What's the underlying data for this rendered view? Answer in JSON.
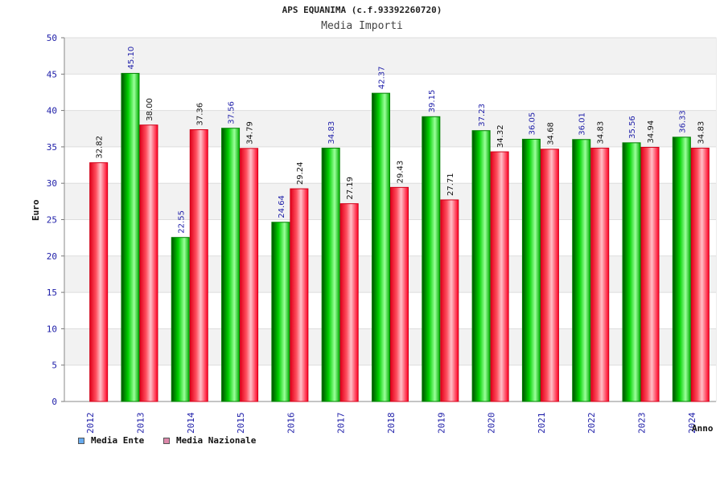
{
  "chart_data": {
    "type": "bar",
    "title": "APS EQUANIMA (c.f.93392260720)",
    "subtitle": "Media Importi",
    "xlabel": "Anno",
    "ylabel": "Euro",
    "categories": [
      "2012",
      "2013",
      "2014",
      "2015",
      "2016",
      "2017",
      "2018",
      "2019",
      "2020",
      "2021",
      "2022",
      "2023",
      "2024"
    ],
    "series": [
      {
        "name": "Media Ente",
        "color": "#00cc00",
        "values": [
          null,
          45.1,
          22.55,
          37.56,
          24.64,
          34.83,
          42.37,
          39.15,
          37.23,
          36.05,
          36.01,
          35.56,
          36.33
        ],
        "labels": [
          "",
          "45.10",
          "22.55",
          "37.56",
          "24.64",
          "34.83",
          "42.37",
          "39.15",
          "37.23",
          "36.05",
          "36.01",
          "35.56",
          "36.33"
        ]
      },
      {
        "name": "Media Nazionale",
        "color": "#ff3344",
        "values": [
          32.82,
          38.0,
          37.36,
          34.79,
          29.24,
          27.19,
          29.43,
          27.71,
          34.32,
          34.68,
          34.83,
          34.94,
          34.83
        ],
        "labels": [
          "32.82",
          "38.00",
          "37.36",
          "34.79",
          "29.24",
          "27.19",
          "29.43",
          "27.71",
          "34.32",
          "34.68",
          "34.83",
          "34.94",
          "34.83"
        ]
      }
    ],
    "ylim": [
      0,
      50
    ],
    "yticks": [
      "0",
      "5",
      "10",
      "15",
      "20",
      "25",
      "30",
      "35",
      "40",
      "45",
      "50"
    ],
    "grid": true,
    "legend": {
      "position": "bottom-left",
      "items": [
        {
          "label": "Media Ente",
          "color": "#66aaee"
        },
        {
          "label": "Media Nazionale",
          "color": "#dd88aa"
        }
      ]
    }
  }
}
